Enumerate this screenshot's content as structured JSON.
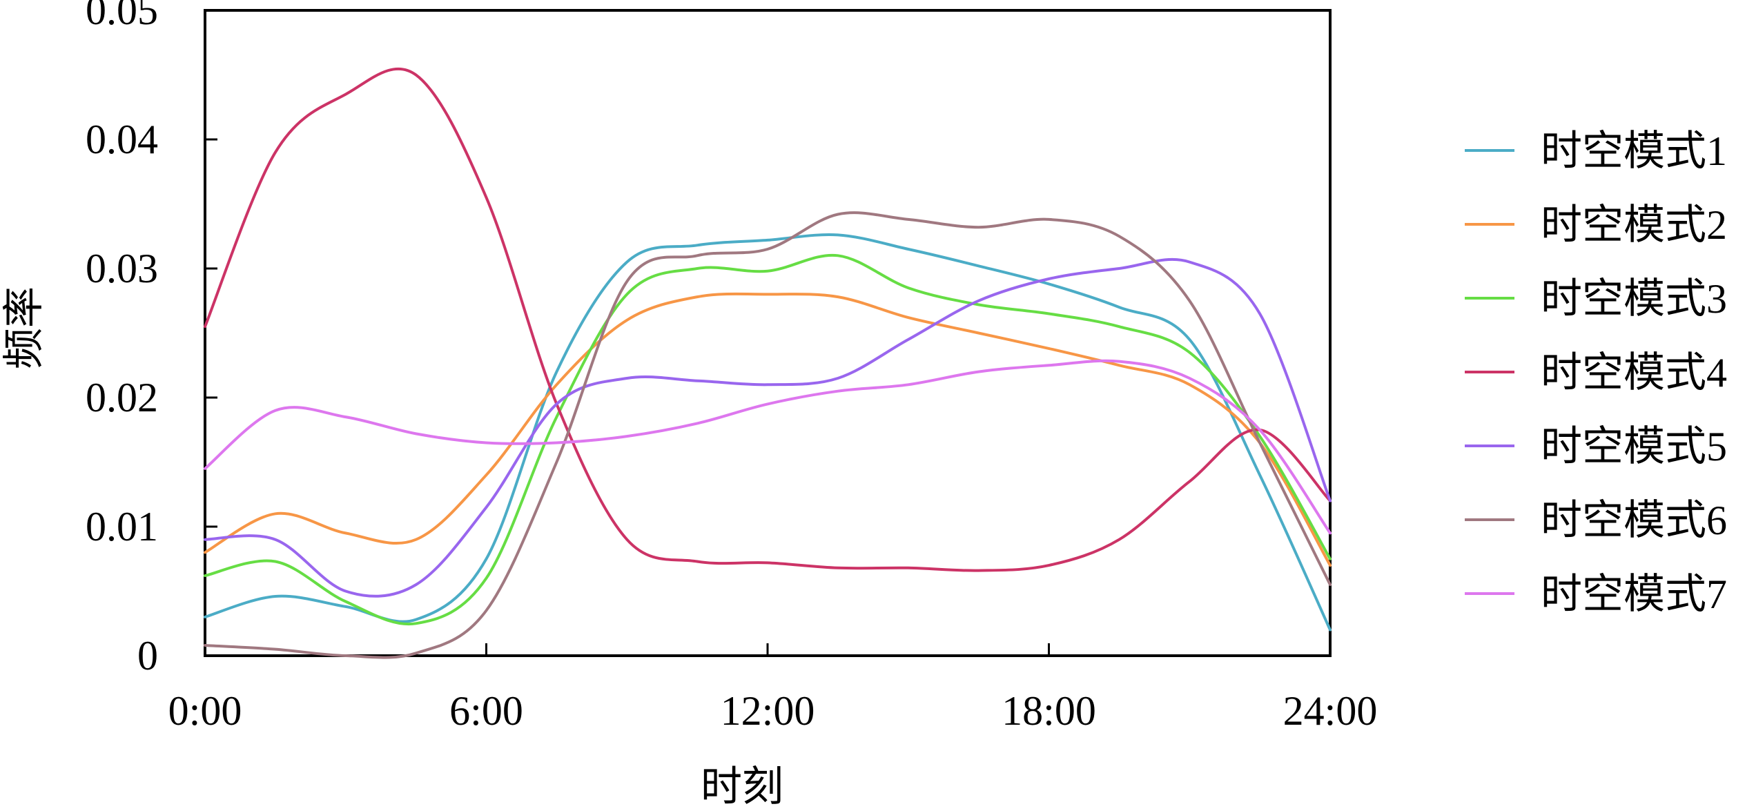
{
  "chart_data": {
    "type": "line",
    "xlabel": "时刻",
    "ylabel": "频率",
    "xlim": [
      0,
      24
    ],
    "ylim": [
      0,
      0.05
    ],
    "xticks": [
      {
        "value": 0,
        "label": "0:00"
      },
      {
        "value": 6,
        "label": "6:00"
      },
      {
        "value": 12,
        "label": "12:00"
      },
      {
        "value": 18,
        "label": "18:00"
      },
      {
        "value": 24,
        "label": "24:00"
      }
    ],
    "yticks": [
      {
        "value": 0,
        "label": "0"
      },
      {
        "value": 0.01,
        "label": "0.01"
      },
      {
        "value": 0.02,
        "label": "0.02"
      },
      {
        "value": 0.03,
        "label": "0.03"
      },
      {
        "value": 0.04,
        "label": "0.04"
      },
      {
        "value": 0.05,
        "label": "0.05"
      }
    ],
    "grid": false,
    "legend_position": "right",
    "x": [
      0,
      1.5,
      3,
      4.5,
      6,
      7.5,
      9,
      10.5,
      12,
      13.5,
      15,
      16.5,
      18,
      19.5,
      21,
      22.5,
      24
    ],
    "series": [
      {
        "name": "时空模式1",
        "color": "#4bacc6",
        "values": [
          0.003,
          0.0046,
          0.0038,
          0.0028,
          0.0075,
          0.022,
          0.0305,
          0.0318,
          0.0322,
          0.0326,
          0.0315,
          0.0302,
          0.0288,
          0.027,
          0.0245,
          0.014,
          0.002
        ]
      },
      {
        "name": "时空模式2",
        "color": "#f79646",
        "values": [
          0.008,
          0.011,
          0.0095,
          0.009,
          0.014,
          0.021,
          0.026,
          0.0278,
          0.028,
          0.0278,
          0.0262,
          0.025,
          0.0238,
          0.0225,
          0.021,
          0.0165,
          0.007
        ]
      },
      {
        "name": "时空模式3",
        "color": "#66dd44",
        "values": [
          0.0062,
          0.0073,
          0.0042,
          0.0025,
          0.006,
          0.0185,
          0.028,
          0.03,
          0.0298,
          0.031,
          0.0285,
          0.0272,
          0.0265,
          0.0255,
          0.0235,
          0.017,
          0.0075
        ]
      },
      {
        "name": "时空模式4",
        "color": "#cc3366",
        "values": [
          0.0255,
          0.039,
          0.0435,
          0.045,
          0.0355,
          0.0195,
          0.009,
          0.0073,
          0.0072,
          0.0068,
          0.0068,
          0.0066,
          0.007,
          0.009,
          0.0135,
          0.0175,
          0.012
        ]
      },
      {
        "name": "时空模式5",
        "color": "#9966ee",
        "values": [
          0.009,
          0.009,
          0.005,
          0.0055,
          0.0115,
          0.0195,
          0.0215,
          0.0213,
          0.021,
          0.0215,
          0.0245,
          0.0275,
          0.0292,
          0.03,
          0.0305,
          0.0265,
          0.012
        ]
      },
      {
        "name": "时空模式6",
        "color": "#a07880",
        "values": [
          0.0008,
          0.0005,
          0.0,
          0.0002,
          0.0035,
          0.015,
          0.029,
          0.031,
          0.0315,
          0.0342,
          0.0338,
          0.0332,
          0.0338,
          0.0325,
          0.0275,
          0.0165,
          0.0055
        ]
      },
      {
        "name": "时空模式7",
        "color": "#dd77ee",
        "values": [
          0.0145,
          0.019,
          0.0185,
          0.0172,
          0.0165,
          0.0165,
          0.017,
          0.018,
          0.0195,
          0.0205,
          0.021,
          0.022,
          0.0225,
          0.0228,
          0.0215,
          0.0175,
          0.0095
        ]
      }
    ]
  }
}
